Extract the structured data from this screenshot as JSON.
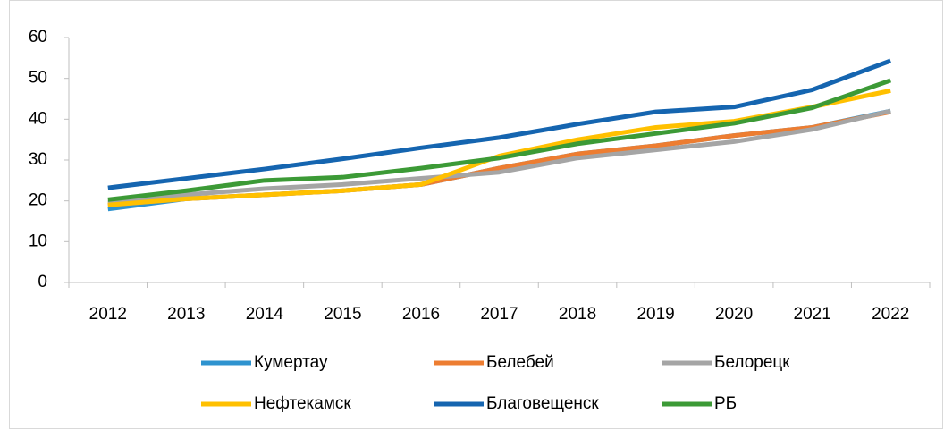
{
  "chart_data": {
    "type": "line",
    "categories": [
      "2012",
      "2013",
      "2014",
      "2015",
      "2016",
      "2017",
      "2018",
      "2019",
      "2020",
      "2021",
      "2022"
    ],
    "series": [
      {
        "name": "Кумертау",
        "color": "#2e93cf",
        "values": [
          18,
          20.5,
          21.5,
          22.5,
          24,
          28,
          31.5,
          33.5,
          36,
          38,
          42
        ]
      },
      {
        "name": "Белебей",
        "color": "#ed7d31",
        "values": [
          19,
          20.5,
          21.5,
          22.5,
          24,
          28,
          31.5,
          33.5,
          36,
          38,
          41.8
        ]
      },
      {
        "name": "Белорецк",
        "color": "#a5a5a5",
        "values": [
          19.5,
          21.5,
          23,
          24,
          25.5,
          27,
          30.5,
          32.5,
          34.5,
          37.5,
          42
        ]
      },
      {
        "name": "Нефтекамск",
        "color": "#ffc000",
        "values": [
          19,
          20.5,
          21.5,
          22.5,
          24,
          31,
          35,
          38,
          39.5,
          43,
          47
        ]
      },
      {
        "name": "Благовещенск",
        "color": "#1565b0",
        "values": [
          23.2,
          25.5,
          27.8,
          30.3,
          33,
          35.5,
          38.8,
          41.8,
          43,
          47.2,
          54.3
        ]
      },
      {
        "name": "РБ",
        "color": "#3c9a36",
        "values": [
          20.3,
          22.5,
          25,
          25.8,
          28,
          30.5,
          34,
          36.5,
          39,
          42.8,
          49.5
        ]
      }
    ],
    "ylim": [
      0,
      60
    ],
    "yticks": [
      0,
      10,
      20,
      30,
      40,
      50,
      60
    ],
    "grid": false,
    "legend": "bottom"
  }
}
